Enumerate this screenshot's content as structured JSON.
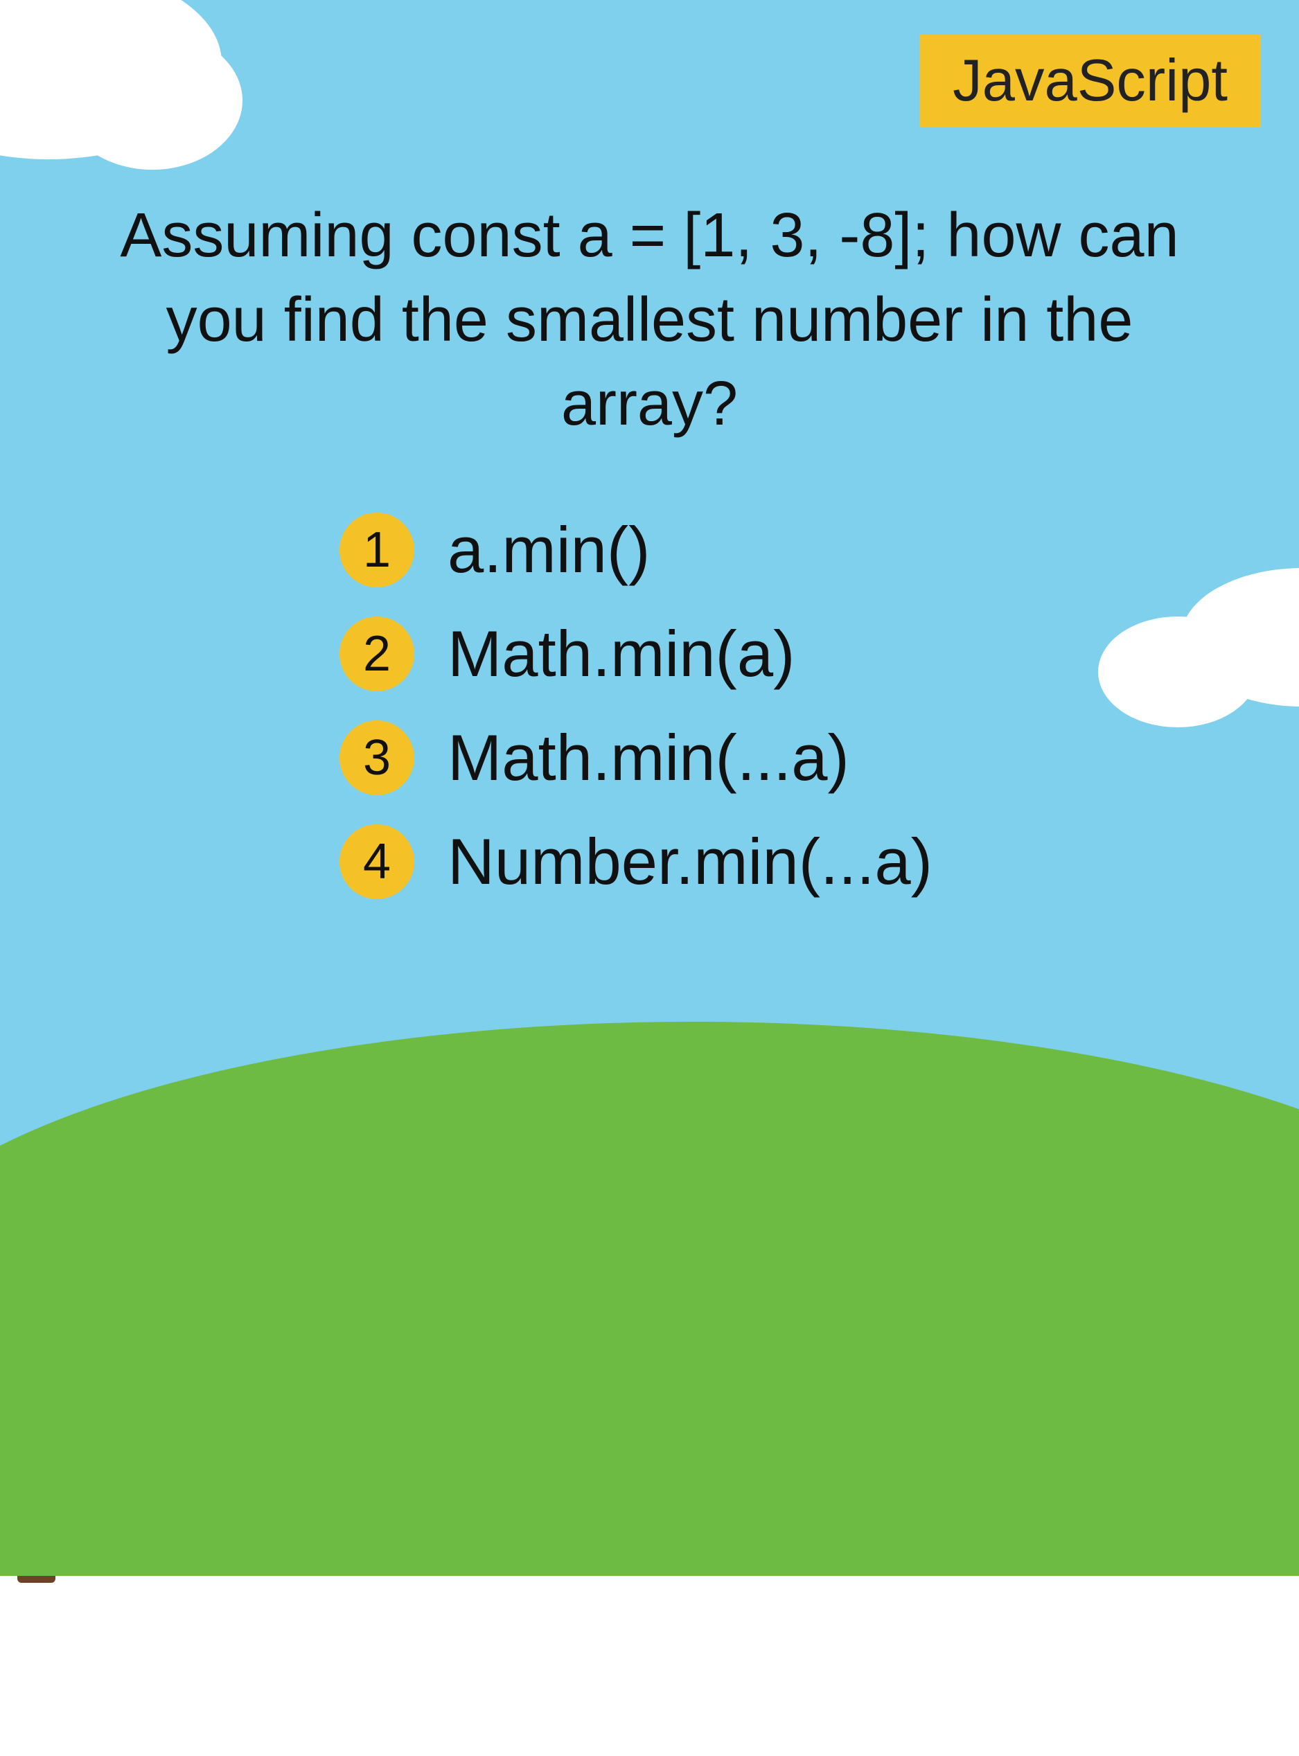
{
  "colors": {
    "sky": "#7fd0ed",
    "cloud": "#ffffff",
    "hill": "#6ebb43",
    "tree_crown": "#4ea033",
    "tree_trunk": "#6e4228",
    "tag_bg": "#f4c226",
    "badge_bg": "#f4c226",
    "text": "#111111"
  },
  "tag": {
    "label": "JavaScript"
  },
  "question": {
    "text": "Assuming const a = [1, 3, -8]; how can you find the smallest number in the array?"
  },
  "options": [
    {
      "num": "1",
      "text": "a.min()"
    },
    {
      "num": "2",
      "text": "Math.min(a)"
    },
    {
      "num": "3",
      "text": "Math.min(...a)"
    },
    {
      "num": "4",
      "text": "Number.min(...a)"
    }
  ]
}
